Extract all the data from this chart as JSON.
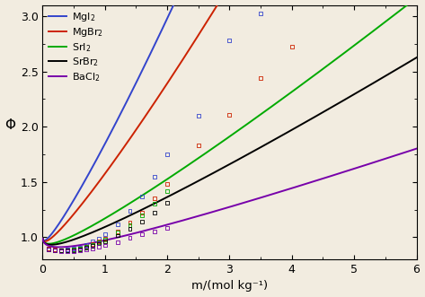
{
  "xlabel": "m/(mol kg⁻¹)",
  "ylabel": "Φ",
  "xlim": [
    0,
    6
  ],
  "ylim": [
    0.8,
    3.1
  ],
  "yticks": [
    1.0,
    1.5,
    2.0,
    2.5,
    3.0
  ],
  "xticks": [
    0,
    1,
    2,
    3,
    4,
    5,
    6
  ],
  "legend_labels": [
    "MgI$_2$",
    "MgBr$_2$",
    "SrI$_2$",
    "SrBr$_2$",
    "BaCl$_2$"
  ],
  "legend_colors": [
    "#3344cc",
    "#cc2200",
    "#00aa00",
    "#000000",
    "#7700aa"
  ],
  "curve_params": {
    "MgI2": {
      "a": -0.392,
      "b": 0.9,
      "c": 0.13,
      "d": 0.01
    },
    "MgBr2": {
      "a": -0.392,
      "b": 0.68,
      "c": 0.085,
      "d": 0.005
    },
    "SrI2": {
      "a": -0.392,
      "b": 0.34,
      "c": 0.025,
      "d": 0.001
    },
    "SrBr2": {
      "a": -0.392,
      "b": 0.27,
      "c": 0.018,
      "d": 0.0005
    },
    "BaCl2": {
      "a": -0.392,
      "b": 0.16,
      "c": 0.008,
      "d": 5e-05
    }
  },
  "exp_MgI2_x": [
    0.1,
    0.2,
    0.3,
    0.4,
    0.5,
    0.6,
    0.7,
    0.8,
    0.9,
    1.0,
    1.2,
    1.4,
    1.6,
    1.8,
    2.0,
    2.5,
    3.0,
    3.5
  ],
  "exp_MgI2_y": [
    0.895,
    0.888,
    0.885,
    0.888,
    0.895,
    0.91,
    0.93,
    0.96,
    0.99,
    1.03,
    1.12,
    1.24,
    1.37,
    1.55,
    1.75,
    2.1,
    2.78,
    3.02
  ],
  "exp_MgBr2_x": [
    0.1,
    0.2,
    0.3,
    0.4,
    0.5,
    0.6,
    0.7,
    0.8,
    0.9,
    1.0,
    1.2,
    1.4,
    1.6,
    1.8,
    2.0,
    2.5,
    3.0,
    3.5,
    4.0
  ],
  "exp_MgBr2_y": [
    0.895,
    0.888,
    0.883,
    0.885,
    0.89,
    0.9,
    0.915,
    0.935,
    0.96,
    0.985,
    1.05,
    1.13,
    1.22,
    1.35,
    1.48,
    1.83,
    2.11,
    2.44,
    2.72
  ],
  "exp_SrI2_x": [
    0.1,
    0.2,
    0.3,
    0.4,
    0.5,
    0.6,
    0.7,
    0.8,
    0.9,
    1.0,
    1.2,
    1.4,
    1.6,
    1.8,
    2.0
  ],
  "exp_SrI2_y": [
    0.893,
    0.885,
    0.88,
    0.882,
    0.888,
    0.898,
    0.912,
    0.932,
    0.955,
    0.98,
    1.04,
    1.11,
    1.2,
    1.3,
    1.42
  ],
  "exp_SrBr2_x": [
    0.1,
    0.2,
    0.3,
    0.4,
    0.5,
    0.6,
    0.7,
    0.8,
    0.9,
    1.0,
    1.2,
    1.4,
    1.6,
    1.8,
    2.0
  ],
  "exp_SrBr2_y": [
    0.89,
    0.883,
    0.878,
    0.879,
    0.884,
    0.893,
    0.906,
    0.923,
    0.942,
    0.964,
    1.015,
    1.075,
    1.14,
    1.22,
    1.31
  ],
  "exp_BaCl2_x": [
    0.1,
    0.2,
    0.3,
    0.4,
    0.5,
    0.6,
    0.7,
    0.8,
    0.9,
    1.0,
    1.2,
    1.4,
    1.6,
    1.8,
    2.0
  ],
  "exp_BaCl2_y": [
    0.888,
    0.878,
    0.872,
    0.871,
    0.873,
    0.879,
    0.887,
    0.898,
    0.911,
    0.926,
    0.958,
    0.992,
    1.025,
    1.055,
    1.082
  ],
  "bg_color": "#f2ece0"
}
